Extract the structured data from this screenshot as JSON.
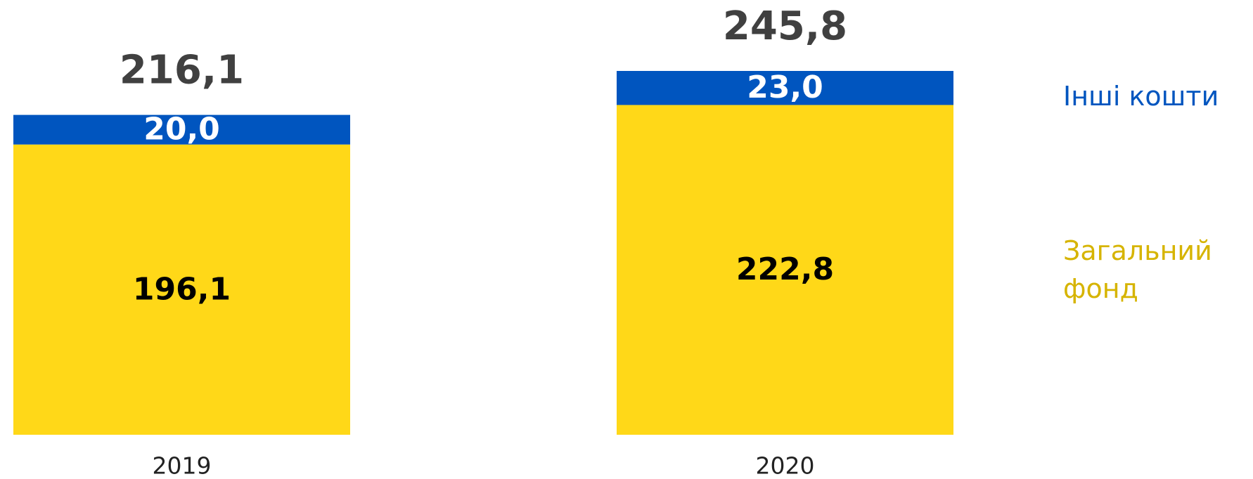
{
  "chart_data": {
    "type": "stacked_bar",
    "categories": [
      "2019",
      "2020"
    ],
    "series": [
      {
        "name": "Загальний фонд",
        "color": "#FFD818",
        "values": [
          196.1,
          222.8
        ],
        "value_labels": [
          "196,1",
          "222,8"
        ]
      },
      {
        "name": "Інші кошти",
        "color": "#0055BF",
        "values": [
          20.0,
          23.0
        ],
        "value_labels": [
          "20,0",
          "23,0"
        ]
      }
    ],
    "totals": [
      216.1,
      245.8
    ],
    "total_labels": [
      "216,1",
      "245,8"
    ]
  }
}
